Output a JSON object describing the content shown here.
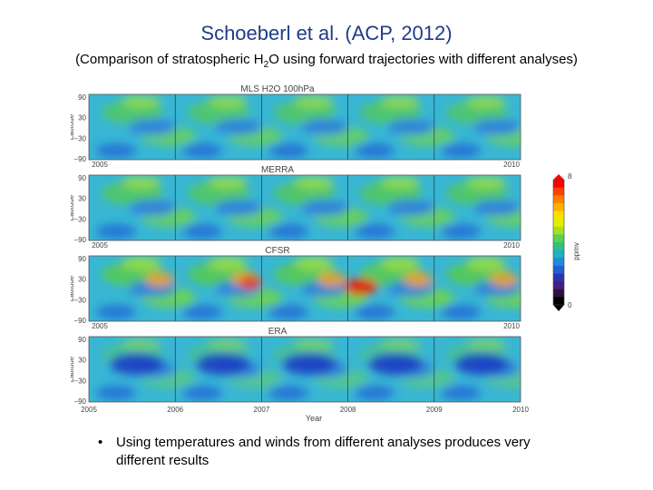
{
  "slide": {
    "title": "Schoeberl et al. (ACP, 2012)",
    "subtitle_pre": "(Comparison of stratospheric H",
    "subtitle_sub": "2",
    "subtitle_post": "O using forward trajectories with different analyses)",
    "bullet_mark": "•",
    "bullet_text": "Using temperatures and winds from different analyses produces very different results"
  },
  "figure": {
    "x_axis_label": "Year",
    "y_axis_label": "Latitude",
    "y_ticks": [
      "90",
      "30",
      "−30",
      "−90"
    ],
    "panels": [
      {
        "title": "MLS H2O 100hPa",
        "x_tick_left": "2005",
        "x_tick_right": "2010"
      },
      {
        "title": "MERRA",
        "x_tick_left": "2005",
        "x_tick_right": "2010"
      },
      {
        "title": "CFSR",
        "x_tick_left": "2005",
        "x_tick_right": "2010"
      },
      {
        "title": "ERA",
        "x_ticks": [
          "2005",
          "2006",
          "2007",
          "2008",
          "2009",
          "2010"
        ]
      }
    ],
    "colorbar": {
      "unit_label": "ppmv",
      "max_label": "8",
      "min_label": "0",
      "colors": [
        "#ff0000",
        "#ff4000",
        "#ff8000",
        "#ffb000",
        "#ffe000",
        "#e0f000",
        "#a8e020",
        "#60d050",
        "#30c080",
        "#20b0c0",
        "#1f8ae0",
        "#2060d0",
        "#3030b0",
        "#402080",
        "#301040",
        "#000000"
      ]
    }
  }
}
